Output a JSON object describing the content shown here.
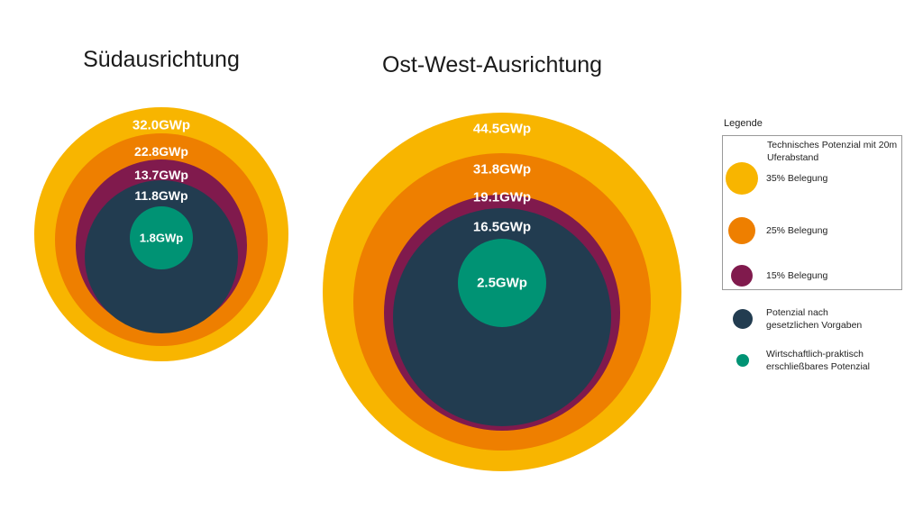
{
  "chart_data": [
    {
      "type": "nested-circles",
      "title": "Südausrichtung",
      "unit": "GWp",
      "rings": [
        {
          "series": "35% Belegung",
          "value": 32.0,
          "label": "32.0GWp"
        },
        {
          "series": "25% Belegung",
          "value": 22.8,
          "label": "22.8GWp"
        },
        {
          "series": "15% Belegung",
          "value": 13.7,
          "label": "13.7GWp"
        },
        {
          "series": "Potenzial nach gesetzlichen Vorgaben",
          "value": 11.8,
          "label": "11.8GWp"
        },
        {
          "series": "Wirtschaftlich-praktisch erschließbares Potenzial",
          "value": 1.8,
          "label": "1.8GWp"
        }
      ]
    },
    {
      "type": "nested-circles",
      "title": "Ost-West-Ausrichtung",
      "unit": "GWp",
      "rings": [
        {
          "series": "35% Belegung",
          "value": 44.5,
          "label": "44.5GWp"
        },
        {
          "series": "25% Belegung",
          "value": 31.8,
          "label": "31.8GWp"
        },
        {
          "series": "15% Belegung",
          "value": 19.1,
          "label": "19.1GWp"
        },
        {
          "series": "Potenzial nach gesetzlichen Vorgaben",
          "value": 16.5,
          "label": "16.5GWp"
        },
        {
          "series": "Wirtschaftlich-praktisch erschließbares Potenzial",
          "value": 2.5,
          "label": "2.5GWp"
        }
      ]
    }
  ],
  "legend": {
    "title": "Legende",
    "box_title": "Technisches Potenzial mit 20m Uferabstand",
    "items": [
      {
        "label": "35% Belegung",
        "color": "#F8B500"
      },
      {
        "label": "25% Belegung",
        "color": "#EE7F00"
      },
      {
        "label": "15% Belegung",
        "color": "#801A4D"
      },
      {
        "label": "Potenzial nach gesetzlichen Vorgaben",
        "color": "#223C50"
      },
      {
        "label": "Wirtschaftlich-praktisch erschließbares Potenzial",
        "color": "#009374"
      }
    ]
  }
}
